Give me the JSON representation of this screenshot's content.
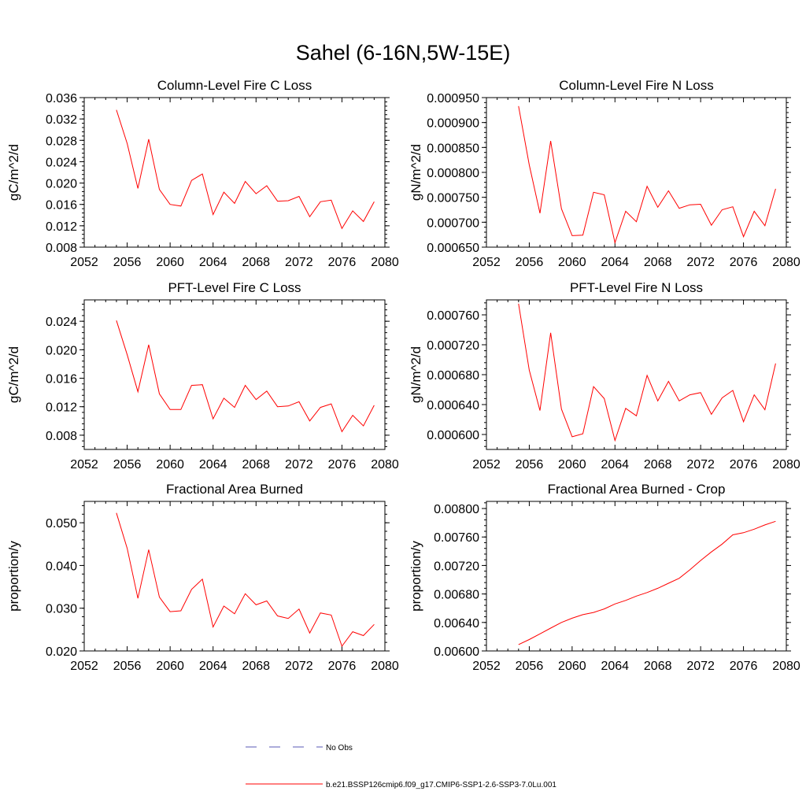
{
  "figure": {
    "title": "Sahel (6-16N,5W-15E)"
  },
  "legend": {
    "placement": "bottom-center",
    "entries": [
      {
        "label": "No Obs",
        "color": "#5a5ab4",
        "style": "dashed"
      },
      {
        "label": "b.e21.BSSP126cmip6.f09_g17.CMIP6-SSP1-2.6-SSP3-7.0Lu.001",
        "color": "#ff0000",
        "style": "solid"
      }
    ]
  },
  "chart_data": [
    {
      "type": "line",
      "title": "Column-Level Fire C Loss",
      "xlabel": "",
      "ylabel": "gC/m^2/d",
      "xlim": [
        2052,
        2080
      ],
      "ylim": [
        0.008,
        0.036
      ],
      "xticks": [
        2052,
        2056,
        2060,
        2064,
        2068,
        2072,
        2076,
        2080
      ],
      "xtick_labels": [
        "2052",
        "2056",
        "2060",
        "2064",
        "2068",
        "2072",
        "2076",
        "2080"
      ],
      "yticks": [
        0.008,
        0.012,
        0.016,
        0.02,
        0.024,
        0.028,
        0.032,
        0.036
      ],
      "ytick_labels": [
        "0.008",
        "0.012",
        "0.016",
        "0.020",
        "0.024",
        "0.028",
        "0.032",
        "0.036"
      ],
      "grid": false,
      "series": [
        {
          "color": "#ff0000",
          "x": [
            2055,
            2056,
            2057,
            2058,
            2059,
            2060,
            2061,
            2062,
            2063,
            2064,
            2065,
            2066,
            2067,
            2068,
            2069,
            2070,
            2071,
            2072,
            2073,
            2074,
            2075,
            2076,
            2077,
            2078,
            2079
          ],
          "values": [
            0.0337,
            0.0274,
            0.019,
            0.0282,
            0.0188,
            0.016,
            0.0157,
            0.0205,
            0.0217,
            0.0141,
            0.0183,
            0.0162,
            0.0203,
            0.018,
            0.0195,
            0.0166,
            0.0167,
            0.0175,
            0.0137,
            0.0165,
            0.0168,
            0.0115,
            0.0148,
            0.0128,
            0.0165
          ]
        }
      ]
    },
    {
      "type": "line",
      "title": "Column-Level Fire N Loss",
      "xlabel": "",
      "ylabel": "gN/m^2/d",
      "xlim": [
        2052,
        2080
      ],
      "ylim": [
        0.00065,
        0.00095
      ],
      "xticks": [
        2052,
        2056,
        2060,
        2064,
        2068,
        2072,
        2076,
        2080
      ],
      "xtick_labels": [
        "2052",
        "2056",
        "2060",
        "2064",
        "2068",
        "2072",
        "2076",
        "2080"
      ],
      "yticks": [
        0.00065,
        0.0007,
        0.00075,
        0.0008,
        0.00085,
        0.0009,
        0.00095
      ],
      "ytick_labels": [
        "0.000650",
        "0.000700",
        "0.000750",
        "0.000800",
        "0.000850",
        "0.000900",
        "0.000950"
      ],
      "grid": false,
      "series": [
        {
          "color": "#ff0000",
          "x": [
            2055,
            2056,
            2057,
            2058,
            2059,
            2060,
            2061,
            2062,
            2063,
            2064,
            2065,
            2066,
            2067,
            2068,
            2069,
            2070,
            2071,
            2072,
            2073,
            2074,
            2075,
            2076,
            2077,
            2078,
            2079
          ],
          "values": [
            0.000933,
            0.000815,
            0.000718,
            0.000863,
            0.000727,
            0.000673,
            0.000674,
            0.00076,
            0.000755,
            0.000659,
            0.000722,
            0.000701,
            0.000772,
            0.00073,
            0.000763,
            0.000728,
            0.000735,
            0.000736,
            0.000694,
            0.000725,
            0.000731,
            0.000671,
            0.000722,
            0.000693,
            0.000767
          ]
        }
      ]
    },
    {
      "type": "line",
      "title": "PFT-Level Fire C Loss",
      "xlabel": "",
      "ylabel": "gC/m^2/d",
      "xlim": [
        2052,
        2080
      ],
      "ylim": [
        0.006,
        0.027
      ],
      "xticks": [
        2052,
        2056,
        2060,
        2064,
        2068,
        2072,
        2076,
        2080
      ],
      "xtick_labels": [
        "2052",
        "2056",
        "2060",
        "2064",
        "2068",
        "2072",
        "2076",
        "2080"
      ],
      "yticks": [
        0.008,
        0.012,
        0.016,
        0.02,
        0.024
      ],
      "ytick_labels": [
        "0.008",
        "0.012",
        "0.016",
        "0.020",
        "0.024"
      ],
      "grid": false,
      "series": [
        {
          "color": "#ff0000",
          "x": [
            2055,
            2056,
            2057,
            2058,
            2059,
            2060,
            2061,
            2062,
            2063,
            2064,
            2065,
            2066,
            2067,
            2068,
            2069,
            2070,
            2071,
            2072,
            2073,
            2074,
            2075,
            2076,
            2077,
            2078,
            2079
          ],
          "values": [
            0.0241,
            0.0193,
            0.0141,
            0.0207,
            0.0138,
            0.0116,
            0.0116,
            0.015,
            0.0151,
            0.0103,
            0.0132,
            0.0119,
            0.015,
            0.013,
            0.0142,
            0.012,
            0.0121,
            0.0127,
            0.01,
            0.0119,
            0.0124,
            0.0085,
            0.0108,
            0.0093,
            0.0122
          ]
        }
      ]
    },
    {
      "type": "line",
      "title": "PFT-Level Fire N Loss",
      "xlabel": "",
      "ylabel": "gN/m^2/d",
      "xlim": [
        2052,
        2080
      ],
      "ylim": [
        0.00058,
        0.00078
      ],
      "xticks": [
        2052,
        2056,
        2060,
        2064,
        2068,
        2072,
        2076,
        2080
      ],
      "xtick_labels": [
        "2052",
        "2056",
        "2060",
        "2064",
        "2068",
        "2072",
        "2076",
        "2080"
      ],
      "yticks": [
        0.0006,
        0.00064,
        0.00068,
        0.00072,
        0.00076
      ],
      "ytick_labels": [
        "0.000600",
        "0.000640",
        "0.000680",
        "0.000720",
        "0.000760"
      ],
      "grid": false,
      "series": [
        {
          "color": "#ff0000",
          "x": [
            2055,
            2056,
            2057,
            2058,
            2059,
            2060,
            2061,
            2062,
            2063,
            2064,
            2065,
            2066,
            2067,
            2068,
            2069,
            2070,
            2071,
            2072,
            2073,
            2074,
            2075,
            2076,
            2077,
            2078,
            2079
          ],
          "values": [
            0.000775,
            0.000686,
            0.000632,
            0.000736,
            0.000634,
            0.000597,
            0.000601,
            0.000664,
            0.000648,
            0.000592,
            0.000635,
            0.000625,
            0.000679,
            0.000645,
            0.000671,
            0.000645,
            0.000653,
            0.000656,
            0.000627,
            0.000649,
            0.000659,
            0.000617,
            0.000653,
            0.000633,
            0.000695
          ]
        }
      ]
    },
    {
      "type": "line",
      "title": "Fractional Area Burned",
      "xlabel": "",
      "ylabel": "proportion/y",
      "xlim": [
        2052,
        2080
      ],
      "ylim": [
        0.02,
        0.055
      ],
      "xticks": [
        2052,
        2056,
        2060,
        2064,
        2068,
        2072,
        2076,
        2080
      ],
      "xtick_labels": [
        "2052",
        "2056",
        "2060",
        "2064",
        "2068",
        "2072",
        "2076",
        "2080"
      ],
      "yticks": [
        0.02,
        0.03,
        0.04,
        0.05
      ],
      "ytick_labels": [
        "0.020",
        "0.030",
        "0.040",
        "0.050"
      ],
      "grid": false,
      "series": [
        {
          "color": "#ff0000",
          "x": [
            2055,
            2056,
            2057,
            2058,
            2059,
            2060,
            2061,
            2062,
            2063,
            2064,
            2065,
            2066,
            2067,
            2068,
            2069,
            2070,
            2071,
            2072,
            2073,
            2074,
            2075,
            2076,
            2077,
            2078,
            2079
          ],
          "values": [
            0.0523,
            0.044,
            0.0323,
            0.0437,
            0.0326,
            0.0292,
            0.0294,
            0.0344,
            0.0368,
            0.0256,
            0.0305,
            0.0287,
            0.0334,
            0.0308,
            0.0317,
            0.0282,
            0.0276,
            0.0298,
            0.0242,
            0.0289,
            0.0284,
            0.0211,
            0.0245,
            0.0236,
            0.0262
          ]
        }
      ]
    },
    {
      "type": "line",
      "title": "Fractional Area Burned - Crop",
      "xlabel": "",
      "ylabel": "proportion/y",
      "xlim": [
        2052,
        2080
      ],
      "ylim": [
        0.006,
        0.0081
      ],
      "xticks": [
        2052,
        2056,
        2060,
        2064,
        2068,
        2072,
        2076,
        2080
      ],
      "xtick_labels": [
        "2052",
        "2056",
        "2060",
        "2064",
        "2068",
        "2072",
        "2076",
        "2080"
      ],
      "yticks": [
        0.006,
        0.0064,
        0.0068,
        0.0072,
        0.0076,
        0.008
      ],
      "ytick_labels": [
        "0.00600",
        "0.00640",
        "0.00680",
        "0.00720",
        "0.00760",
        "0.00800"
      ],
      "grid": false,
      "series": [
        {
          "color": "#ff0000",
          "x": [
            2055,
            2056,
            2057,
            2058,
            2059,
            2060,
            2061,
            2062,
            2063,
            2064,
            2065,
            2066,
            2067,
            2068,
            2069,
            2070,
            2071,
            2072,
            2073,
            2074,
            2075,
            2076,
            2077,
            2078,
            2079
          ],
          "values": [
            0.00609,
            0.00616,
            0.00624,
            0.00632,
            0.0064,
            0.00646,
            0.00651,
            0.00654,
            0.00659,
            0.00666,
            0.00671,
            0.00677,
            0.00682,
            0.00688,
            0.00695,
            0.00702,
            0.00714,
            0.00727,
            0.00739,
            0.0075,
            0.00763,
            0.00766,
            0.00771,
            0.00777,
            0.00782
          ]
        }
      ]
    }
  ]
}
